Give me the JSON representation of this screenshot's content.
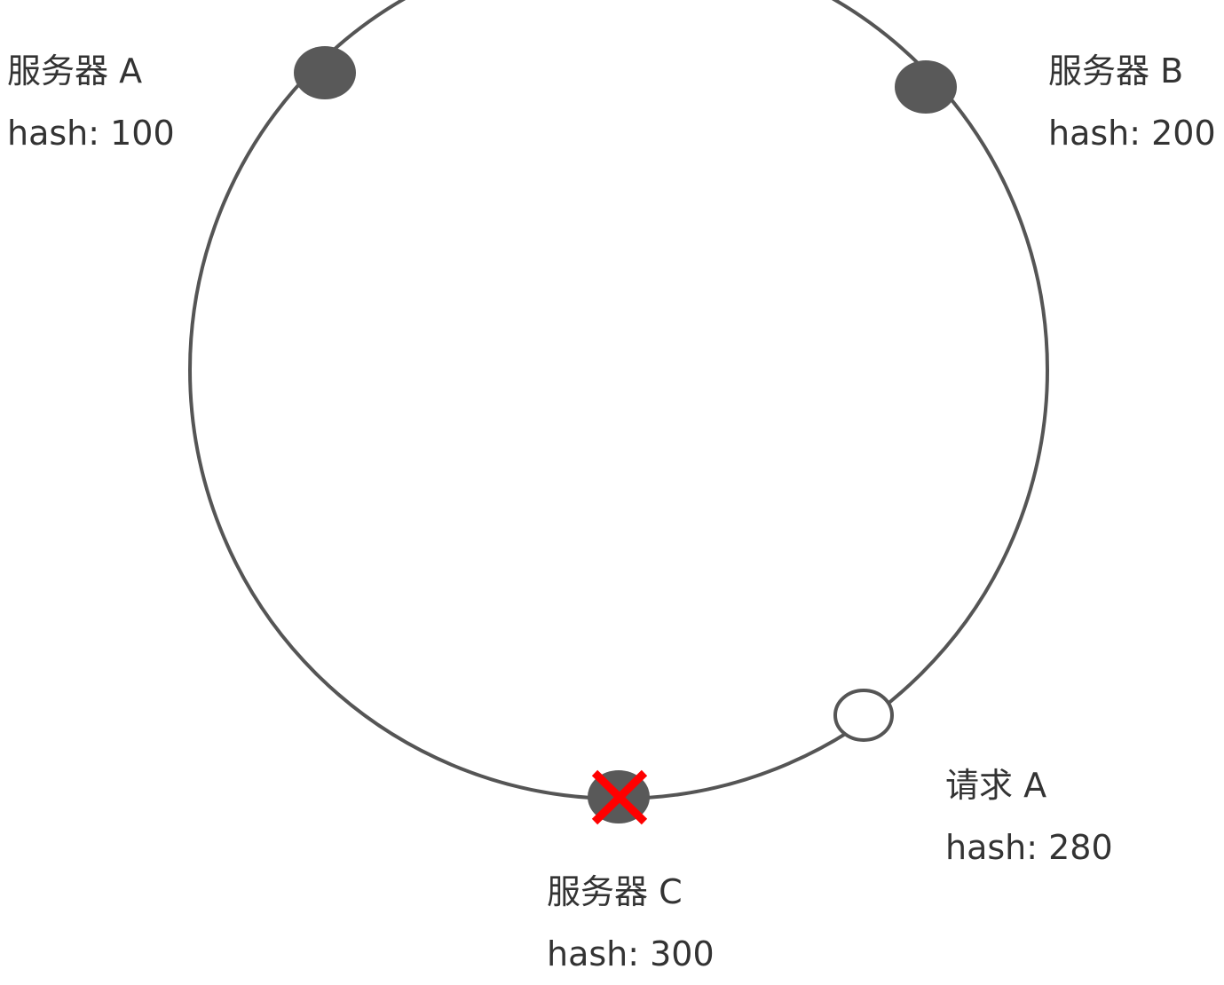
{
  "colors": {
    "ring": "#555555",
    "server_node": "#595959",
    "request_node_fill": "#ffffff",
    "failed_mark": "#ff0000",
    "text": "#333333"
  },
  "nodes": {
    "server_a": {
      "name": "服务器 A",
      "hash": "hash: 100"
    },
    "server_b": {
      "name": "服务器 B",
      "hash": "hash: 200"
    },
    "server_c": {
      "name": "服务器 C",
      "hash": "hash: 300",
      "status": "failed"
    },
    "request_a": {
      "name": "请求 A",
      "hash": "hash: 280"
    }
  }
}
